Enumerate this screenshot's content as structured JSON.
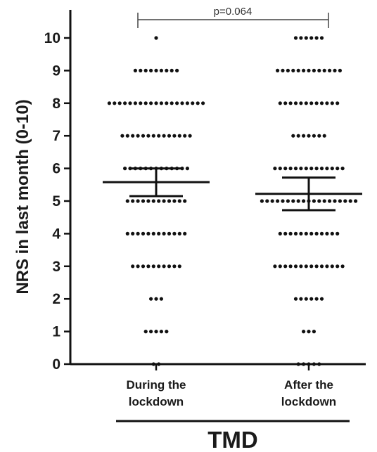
{
  "chart_data": {
    "type": "scatter",
    "title": "",
    "ylabel": "NRS in last month (0-10)",
    "xlabel": "TMD",
    "ylim": [
      0,
      10
    ],
    "yticks": [
      "0",
      "1",
      "2",
      "3",
      "4",
      "5",
      "6",
      "7",
      "8",
      "9",
      "10"
    ],
    "categories": [
      "During the\nlockdown",
      "After the\nlockdown"
    ],
    "category_lines": [
      [
        "During the",
        "lockdown"
      ],
      [
        "After the",
        "lockdown"
      ]
    ],
    "annotation": "p=0.064",
    "point_counts": [
      [
        2,
        5,
        3,
        10,
        12,
        12,
        13,
        14,
        19,
        9,
        1
      ],
      [
        5,
        3,
        6,
        14,
        12,
        19,
        14,
        7,
        12,
        13,
        6
      ]
    ],
    "summary": [
      {
        "mean": 5.58,
        "err_low": 5.15,
        "err_high": 6.0
      },
      {
        "mean": 5.22,
        "err_low": 4.72,
        "err_high": 5.72
      }
    ]
  }
}
